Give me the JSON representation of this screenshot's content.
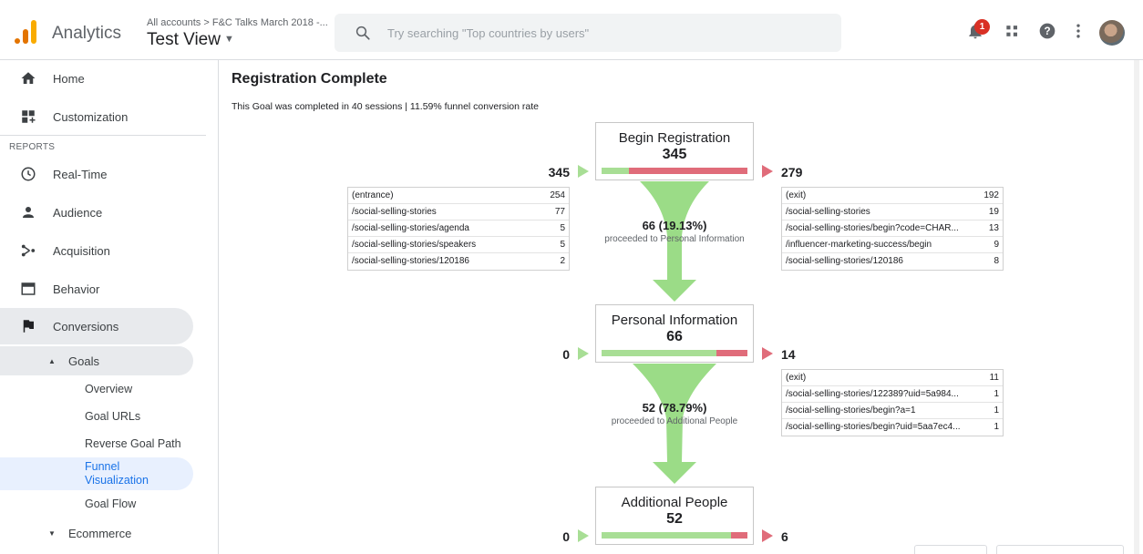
{
  "header": {
    "app_title": "Analytics",
    "breadcrumb": "All accounts > F&C Talks March 2018 -...",
    "view_title": "Test View",
    "search_placeholder": "Try searching \"Top countries by users\"",
    "notification_count": "1",
    "icons": [
      "analytics-logo",
      "search-icon",
      "bell-icon",
      "apps-icon",
      "help-icon",
      "more-vert-icon",
      "avatar"
    ]
  },
  "sidebar": {
    "items": [
      {
        "label": "Home",
        "icon": "home-icon"
      },
      {
        "label": "Customization",
        "icon": "dashboard-icon"
      },
      {
        "label": "Real-Time",
        "icon": "clock-icon"
      },
      {
        "label": "Audience",
        "icon": "person-icon"
      },
      {
        "label": "Acquisition",
        "icon": "acquisition-icon"
      },
      {
        "label": "Behavior",
        "icon": "window-icon"
      },
      {
        "label": "Conversions",
        "icon": "flag-icon"
      }
    ],
    "section_reports": "REPORTS",
    "goals": {
      "label": "Goals",
      "children": [
        "Overview",
        "Goal URLs",
        "Reverse Goal Path",
        "Funnel Visualization",
        "Goal Flow"
      ],
      "active": "Funnel Visualization"
    },
    "ecommerce": "Ecommerce"
  },
  "main": {
    "title": "Registration Complete",
    "summary": "This Goal was completed in 40 sessions | 11.59% funnel conversion rate",
    "steps": [
      {
        "name": "Begin Registration",
        "count": "345",
        "entrances": "345",
        "exits": "279",
        "retained_fraction": 0.19,
        "entrance_rows": [
          {
            "path": "(entrance)",
            "value": "254"
          },
          {
            "path": "/social-selling-stories",
            "value": "77"
          },
          {
            "path": "/social-selling-stories/agenda",
            "value": "5"
          },
          {
            "path": "/social-selling-stories/speakers",
            "value": "5"
          },
          {
            "path": "/social-selling-stories/120186",
            "value": "2"
          }
        ],
        "exit_rows": [
          {
            "path": "(exit)",
            "value": "192"
          },
          {
            "path": "/social-selling-stories",
            "value": "19"
          },
          {
            "path": "/social-selling-stories/begin?code=CHAR...",
            "value": "13"
          },
          {
            "path": "/influencer-marketing-success/begin",
            "value": "9"
          },
          {
            "path": "/social-selling-stories/120186",
            "value": "8"
          }
        ],
        "proceeded_count": "66 (19.13%)",
        "proceeded_label": "proceeded to Personal Information"
      },
      {
        "name": "Personal Information",
        "count": "66",
        "entrances": "0",
        "exits": "14",
        "retained_fraction": 0.79,
        "exit_rows": [
          {
            "path": "(exit)",
            "value": "11"
          },
          {
            "path": "/social-selling-stories/122389?uid=5a984...",
            "value": "1"
          },
          {
            "path": "/social-selling-stories/begin?a=1",
            "value": "1"
          },
          {
            "path": "/social-selling-stories/begin?uid=5aa7ec4...",
            "value": "1"
          }
        ],
        "proceeded_count": "52 (78.79%)",
        "proceeded_label": "proceeded to Additional People"
      },
      {
        "name": "Additional People",
        "count": "52",
        "entrances": "0",
        "exits": "6",
        "retained_fraction": 0.89
      }
    ]
  },
  "colors": {
    "green": "#a8de95",
    "red": "#e06c7a",
    "funnel": "#9bdc87",
    "accent_blue": "#1a73e8"
  }
}
